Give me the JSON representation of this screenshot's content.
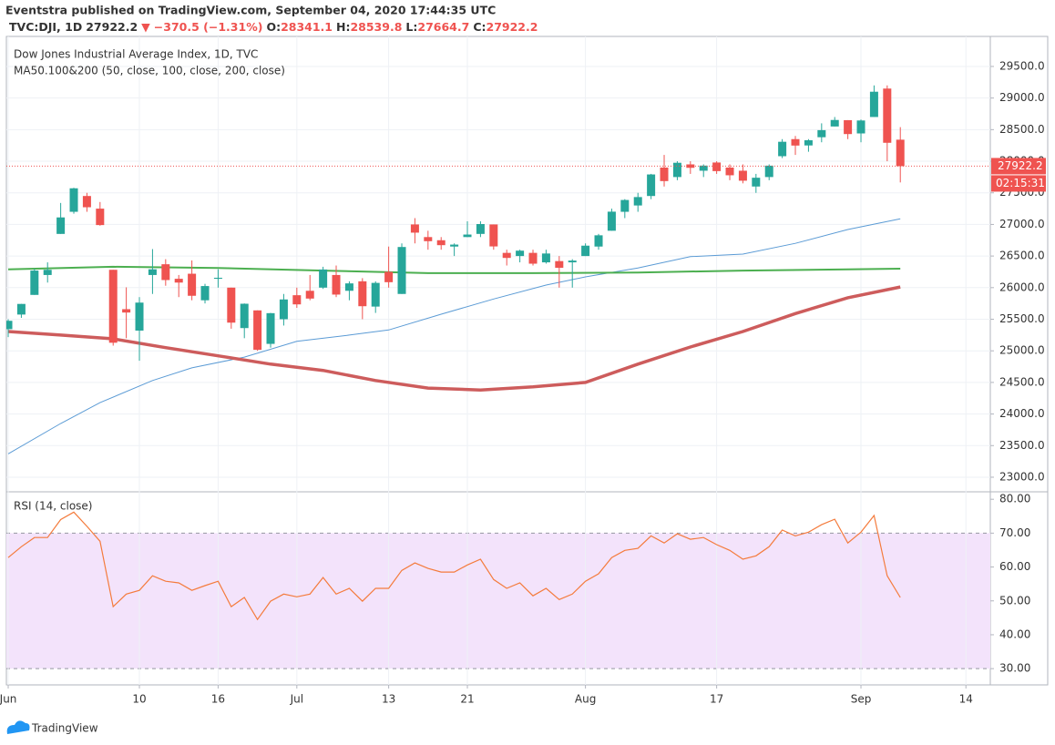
{
  "header": {
    "publisher": "Eventstra published on TradingView.com, September 04, 2020 17:44:35 UTC",
    "symbol": "TVC:DJI, 1D",
    "last": "27922.2",
    "arrow": "▼",
    "change": "−370.5 (−1.31%)",
    "quote": [
      {
        "label": "O:",
        "value": "28341.1"
      },
      {
        "label": "H:",
        "value": "28539.8"
      },
      {
        "label": "L:",
        "value": "27664.7"
      },
      {
        "label": "C:",
        "value": "27922.2"
      }
    ]
  },
  "footer": {
    "brand": "TradingView"
  },
  "chart_data": [
    {
      "type": "candlestick",
      "title": "Dow Jones Industrial Average Index, 1D, TVC",
      "subtitle": "MA50.100&200 (50, close, 100, close, 200, close)",
      "up_color": "#26a69a",
      "down_color": "#ef5350",
      "countdown": "02:15:31",
      "xlim": [
        -0.14,
        74.86
      ],
      "ylim": [
        22769,
        29975
      ],
      "yticks": [
        {
          "value": 23000,
          "label": "23000.0"
        },
        {
          "value": 23500,
          "label": "23500.0"
        },
        {
          "value": 24000,
          "label": "24000.0"
        },
        {
          "value": 24500,
          "label": "24500.0"
        },
        {
          "value": 25000,
          "label": "25000.0"
        },
        {
          "value": 25500,
          "label": "25500.0"
        },
        {
          "value": 26000,
          "label": "26000.0"
        },
        {
          "value": 26500,
          "label": "26500.0"
        },
        {
          "value": 27000,
          "label": "27000.0"
        },
        {
          "value": 27500,
          "label": "27500.0"
        },
        {
          "value": 28000,
          "label": "28000.0"
        },
        {
          "value": 28500,
          "label": "28500.0"
        },
        {
          "value": 29000,
          "label": "29000.0"
        },
        {
          "value": 29500,
          "label": "29500.0"
        }
      ],
      "grid": true,
      "open": [
        25343,
        25574,
        25885,
        26200,
        26850,
        27200,
        27450,
        27250,
        26282,
        25659,
        25320,
        26200,
        26370,
        26140,
        26220,
        25800,
        26140,
        26000,
        25360,
        25640,
        25110,
        25500,
        25880,
        25950,
        26000,
        26200,
        25950,
        26100,
        25700,
        26250,
        25900,
        27000,
        26800,
        26750,
        26650,
        26800,
        26850,
        27000,
        26550,
        26500,
        26550,
        26400,
        26420,
        26400,
        26500,
        26650,
        26900,
        27200,
        27300,
        27450,
        27900,
        27750,
        27950,
        27850,
        27980,
        27900,
        27850,
        27600,
        27750,
        28080,
        28350,
        28250,
        28380,
        28550,
        28650,
        28440,
        28700,
        29150,
        28341.1
      ],
      "high": [
        25500,
        25742,
        26300,
        26400,
        27340,
        27580,
        27500,
        27355,
        26282,
        26005,
        25850,
        26610,
        26450,
        26200,
        26430,
        26060,
        26290,
        26000,
        25750,
        25640,
        25600,
        25900,
        26000,
        26200,
        26330,
        26350,
        26100,
        26150,
        26100,
        26650,
        26700,
        27100,
        26900,
        26800,
        26700,
        27050,
        27050,
        27000,
        26600,
        26600,
        26600,
        26600,
        26500,
        26450,
        26700,
        26850,
        27250,
        27400,
        27500,
        27800,
        28100,
        28000,
        28000,
        27950,
        28000,
        27950,
        27950,
        27800,
        27950,
        28350,
        28400,
        28350,
        28600,
        28700,
        28650,
        28660,
        29200,
        29200,
        28539.8
      ],
      "low": [
        25217,
        25522,
        25885,
        26080,
        26850,
        27170,
        27200,
        26980,
        25082,
        25200,
        24843,
        25900,
        26030,
        25850,
        25800,
        25750,
        26000,
        25350,
        25200,
        25000,
        25050,
        25400,
        25680,
        25800,
        25980,
        25850,
        25800,
        25500,
        25600,
        26000,
        25900,
        26700,
        26600,
        26600,
        26500,
        26800,
        26800,
        26600,
        26350,
        26400,
        26350,
        26380,
        26000,
        26000,
        26500,
        26600,
        26900,
        27100,
        27200,
        27400,
        27600,
        27700,
        27800,
        27750,
        27800,
        27700,
        27650,
        27500,
        27700,
        28050,
        28100,
        28150,
        28300,
        28550,
        28350,
        28300,
        28700,
        28000,
        27664.7
      ],
      "close": [
        25475,
        25742,
        26270,
        26282,
        27111,
        27572,
        27272,
        26990,
        25128,
        25606,
        25763,
        26290,
        26120,
        26080,
        25871,
        26025,
        26156,
        25446,
        25745,
        25016,
        25596,
        25813,
        25735,
        25827,
        26287,
        25890,
        26067,
        25706,
        26075,
        26086,
        26643,
        26870,
        26735,
        26672,
        26681,
        26840,
        27006,
        26652,
        26470,
        26585,
        26379,
        26540,
        26314,
        26428,
        26664,
        26828,
        27202,
        27387,
        27433,
        27791,
        27686,
        27976,
        27896,
        27931,
        27844,
        27778,
        27692,
        27739,
        27930,
        28308,
        28248,
        28332,
        28492,
        28653,
        28430,
        28645,
        29100,
        28292,
        27922.2
      ],
      "series": [
        {
          "color": "#5b9bd5",
          "width": 1,
          "x": [
            0,
            4,
            7,
            11,
            14,
            18,
            22,
            26,
            29,
            33,
            37,
            41,
            44,
            48,
            52,
            56,
            60,
            64,
            68
          ],
          "values": [
            23370,
            23850,
            24180,
            24530,
            24730,
            24900,
            25150,
            25250,
            25330,
            25580,
            25820,
            26040,
            26170,
            26310,
            26490,
            26530,
            26700,
            26920,
            27090
          ]
        },
        {
          "color": "#4caf50",
          "width": 2,
          "x": [
            0,
            8,
            16,
            24,
            32,
            40,
            48,
            56,
            64,
            68
          ],
          "values": [
            26290,
            26330,
            26310,
            26270,
            26230,
            26230,
            26240,
            26270,
            26290,
            26300
          ]
        },
        {
          "color": "#cd5c5c",
          "width": 3.5,
          "x": [
            0,
            4,
            8,
            12,
            16,
            20,
            24,
            28,
            32,
            36,
            40,
            44,
            48,
            52,
            56,
            60,
            64,
            68
          ],
          "values": [
            25305,
            25250,
            25190,
            25050,
            24920,
            24790,
            24690,
            24530,
            24410,
            24380,
            24430,
            24500,
            24790,
            25060,
            25305,
            25590,
            25840,
            26010
          ]
        }
      ]
    },
    {
      "type": "line",
      "title": "RSI (14, close)",
      "color": "#f47b3c",
      "band": [
        30,
        70
      ],
      "band_color": "#f3e3fb",
      "xlim": [
        -0.14,
        74.86
      ],
      "ylim": [
        25.2,
        82.2
      ],
      "yticks": [
        {
          "value": 30,
          "label": "30.00"
        },
        {
          "value": 40,
          "label": "40.00"
        },
        {
          "value": 50,
          "label": "50.00"
        },
        {
          "value": 60,
          "label": "60.00"
        },
        {
          "value": 70,
          "label": "70.00"
        },
        {
          "value": 80,
          "label": "80.00"
        }
      ],
      "xticks": [
        {
          "value": 0,
          "label": "Jun"
        },
        10,
        16,
        {
          "value": 22,
          "label": "Jul"
        },
        {
          "value": 29,
          "label": "13"
        },
        {
          "value": 35,
          "label": "21"
        },
        {
          "value": 44,
          "label": "Aug"
        },
        {
          "value": 54,
          "label": "17"
        },
        {
          "value": 65,
          "label": "Sep"
        },
        {
          "value": 73,
          "label": "14"
        }
      ],
      "values": [
        62.8,
        66,
        68.7,
        68.7,
        74,
        76.2,
        72,
        67.6,
        48.3,
        52,
        53.1,
        57.4,
        55.8,
        55.3,
        53.1,
        54.5,
        55.8,
        48.3,
        51,
        44.5,
        49.9,
        52,
        51.2,
        52,
        56.9,
        52,
        53.7,
        49.9,
        53.7,
        53.7,
        59,
        61.2,
        59.6,
        58.5,
        58.5,
        60.6,
        62.3,
        56.3,
        53.7,
        55.3,
        51.5,
        53.7,
        50.4,
        52,
        55.8,
        58,
        62.8,
        64.9,
        65.5,
        69.2,
        67.1,
        69.8,
        68.2,
        68.7,
        66.6,
        64.9,
        62.3,
        63.3,
        66,
        70.9,
        69.2,
        70.3,
        72.5,
        74.1,
        67.1,
        70.3,
        75.2,
        57.4,
        51
      ]
    }
  ]
}
